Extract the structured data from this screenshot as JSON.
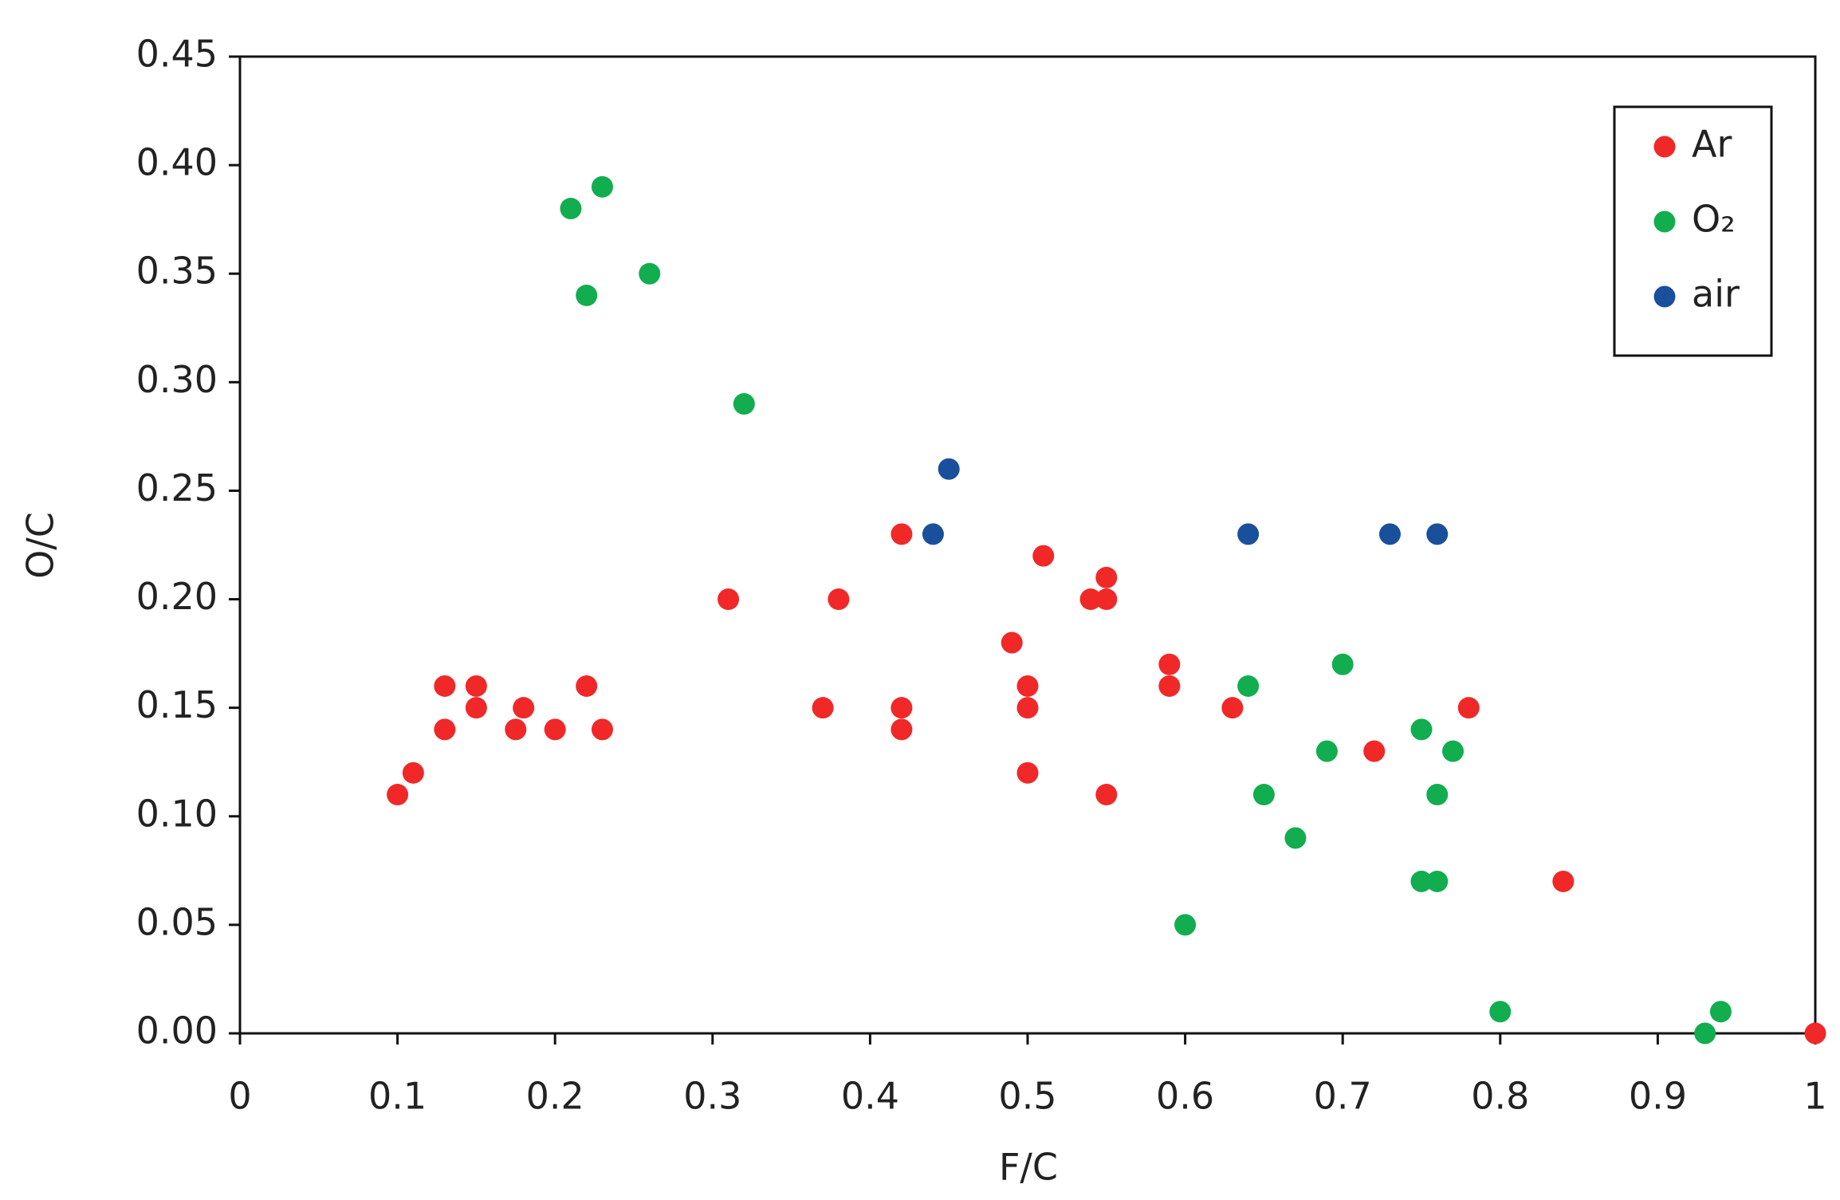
{
  "chart_data": {
    "type": "scatter",
    "x_label": "F/C",
    "y_label": "O/C",
    "xlim": [
      0,
      1
    ],
    "ylim": [
      0,
      0.45
    ],
    "xticks": [
      0,
      0.1,
      0.2,
      0.3,
      0.4,
      0.5,
      0.6,
      0.7,
      0.8,
      0.9,
      1
    ],
    "yticks": [
      {
        "value": 0,
        "label": "0.00"
      },
      {
        "value": 0.05,
        "label": "0.05"
      },
      {
        "value": 0.1,
        "label": "0.10"
      },
      {
        "value": 0.15,
        "label": "0.15"
      },
      {
        "value": 0.2,
        "label": "0.20"
      },
      {
        "value": 0.25,
        "label": "0.25"
      },
      {
        "value": 0.3,
        "label": "0.30"
      },
      {
        "value": 0.35,
        "label": "0.35"
      },
      {
        "value": 0.4,
        "label": "0.40"
      },
      {
        "value": 0.45,
        "label": "0.45"
      }
    ],
    "grid": false,
    "legend": "upper right",
    "series": [
      {
        "name": "Ar",
        "color": "#f02828",
        "x": [
          0.1,
          0.11,
          0.13,
          0.13,
          0.15,
          0.15,
          0.175,
          0.18,
          0.2,
          0.22,
          0.23,
          0.31,
          0.37,
          0.38,
          0.42,
          0.42,
          0.42,
          0.49,
          0.5,
          0.5,
          0.5,
          0.51,
          0.54,
          0.55,
          0.55,
          0.55,
          0.59,
          0.59,
          0.63,
          0.72,
          0.78,
          0.84,
          1.0
        ],
        "values": [
          0.11,
          0.12,
          0.16,
          0.14,
          0.16,
          0.15,
          0.14,
          0.15,
          0.14,
          0.16,
          0.14,
          0.2,
          0.15,
          0.2,
          0.23,
          0.15,
          0.14,
          0.18,
          0.16,
          0.15,
          0.12,
          0.22,
          0.2,
          0.21,
          0.2,
          0.11,
          0.17,
          0.16,
          0.15,
          0.13,
          0.15,
          0.07,
          0.0
        ]
      },
      {
        "name": "O₂",
        "color": "#12ad4f",
        "x": [
          0.21,
          0.23,
          0.22,
          0.26,
          0.32,
          0.6,
          0.64,
          0.65,
          0.67,
          0.69,
          0.7,
          0.75,
          0.76,
          0.77,
          0.75,
          0.76,
          0.8,
          0.93,
          0.94
        ],
        "values": [
          0.38,
          0.39,
          0.34,
          0.35,
          0.29,
          0.05,
          0.16,
          0.11,
          0.09,
          0.13,
          0.17,
          0.14,
          0.11,
          0.13,
          0.07,
          0.07,
          0.01,
          0.0,
          0.01
        ]
      },
      {
        "name": "air",
        "color": "#1a4f9c",
        "x": [
          0.44,
          0.45,
          0.64,
          0.73,
          0.76
        ],
        "values": [
          0.23,
          0.26,
          0.23,
          0.23,
          0.23
        ]
      }
    ]
  }
}
